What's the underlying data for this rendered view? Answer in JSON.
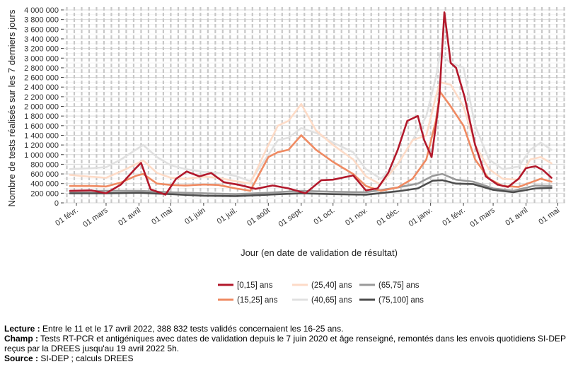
{
  "chart_data": {
    "type": "line",
    "title": "",
    "ylabel": "Nombre de tests réalisés sur les 7 derniers jours",
    "xlabel": "Jour (en date de validation de résultat)",
    "ylim": [
      0,
      4000000
    ],
    "yticks": [
      0,
      200000,
      400000,
      600000,
      800000,
      1000000,
      1200000,
      1400000,
      1600000,
      1800000,
      2000000,
      2200000,
      2400000,
      2600000,
      2800000,
      3000000,
      3200000,
      3400000,
      3600000,
      3800000,
      4000000
    ],
    "ytick_labels": [
      "0",
      "200 000",
      "400 000",
      "600 000",
      "800 000",
      "1 000 000",
      "1 200 000",
      "1 400 000",
      "1 600 000",
      "1 800 000",
      "2 000 000",
      "2 200 000",
      "2 400 000",
      "2 600 000",
      "2 800 000",
      "3 000 000",
      "3 200 000",
      "3 400 000",
      "3 600 000",
      "3 800 000",
      "4 000 000"
    ],
    "xlim": [
      "2021-01-20",
      "2022-05-08"
    ],
    "xticks": [
      "2021-02-01",
      "2021-03-01",
      "2021-04-01",
      "2021-05-01",
      "2021-06-01",
      "2021-07-01",
      "2021-08-01",
      "2021-09-01",
      "2021-10-01",
      "2021-11-01",
      "2021-12-01",
      "2022-01-01",
      "2022-02-01",
      "2022-03-01",
      "2022-04-01",
      "2022-05-01"
    ],
    "xtick_labels": [
      "01 févr.",
      "01 mars",
      "01 avril",
      "01 mai",
      "01 juin",
      "01 juil.",
      "01 août",
      "01 sept.",
      "01 oct.",
      "01 nov.",
      "01 déc.",
      "01 janv.",
      "01 févr.",
      "01 mars",
      "01 avril",
      "01 mai"
    ],
    "grid": true,
    "legend_position": "bottom",
    "series": [
      {
        "name": "[0,15] ans",
        "color": "#b2182b",
        "x": [
          "2021-01-26",
          "2021-02-15",
          "2021-03-01",
          "2021-03-15",
          "2021-03-29",
          "2021-04-03",
          "2021-04-12",
          "2021-04-26",
          "2021-05-06",
          "2021-05-16",
          "2021-05-28",
          "2021-06-08",
          "2021-06-20",
          "2021-07-05",
          "2021-07-20",
          "2021-08-05",
          "2021-08-20",
          "2021-09-05",
          "2021-09-20",
          "2021-10-01",
          "2021-10-20",
          "2021-11-01",
          "2021-11-12",
          "2021-11-22",
          "2021-12-01",
          "2021-12-10",
          "2021-12-20",
          "2021-12-26",
          "2022-01-02",
          "2022-01-09",
          "2022-01-14",
          "2022-01-20",
          "2022-01-25",
          "2022-02-02",
          "2022-02-12",
          "2022-02-22",
          "2022-03-05",
          "2022-03-15",
          "2022-03-25",
          "2022-04-01",
          "2022-04-10",
          "2022-04-17",
          "2022-04-25"
        ],
        "values": [
          250000,
          260000,
          200000,
          380000,
          720000,
          830000,
          280000,
          170000,
          500000,
          650000,
          550000,
          620000,
          430000,
          370000,
          290000,
          360000,
          300000,
          200000,
          470000,
          480000,
          570000,
          260000,
          300000,
          620000,
          1100000,
          1700000,
          1800000,
          1300000,
          950000,
          2100000,
          3950000,
          2900000,
          2800000,
          2200000,
          1200000,
          550000,
          380000,
          330000,
          500000,
          720000,
          760000,
          680000,
          520000
        ]
      },
      {
        "name": "(15,25] ans",
        "color": "#ef8a62",
        "x": [
          "2021-01-26",
          "2021-02-15",
          "2021-03-01",
          "2021-03-15",
          "2021-03-29",
          "2021-04-05",
          "2021-04-18",
          "2021-05-01",
          "2021-05-15",
          "2021-06-01",
          "2021-06-15",
          "2021-07-01",
          "2021-07-15",
          "2021-08-01",
          "2021-08-10",
          "2021-08-20",
          "2021-09-01",
          "2021-09-15",
          "2021-10-01",
          "2021-10-20",
          "2021-11-01",
          "2021-11-15",
          "2021-12-01",
          "2021-12-15",
          "2021-12-28",
          "2022-01-06",
          "2022-01-10",
          "2022-01-20",
          "2022-02-01",
          "2022-02-12",
          "2022-02-25",
          "2022-03-10",
          "2022-03-25",
          "2022-04-05",
          "2022-04-15",
          "2022-04-25"
        ],
        "values": [
          350000,
          350000,
          340000,
          420000,
          560000,
          600000,
          400000,
          370000,
          360000,
          380000,
          370000,
          300000,
          250000,
          950000,
          1050000,
          1100000,
          1400000,
          1100000,
          850000,
          600000,
          350000,
          250000,
          320000,
          500000,
          900000,
          1700000,
          2300000,
          2000000,
          1600000,
          900000,
          500000,
          350000,
          330000,
          420000,
          500000,
          440000
        ]
      },
      {
        "name": "(25,40] ans",
        "color": "#fddbc7",
        "x": [
          "2021-01-26",
          "2021-02-15",
          "2021-03-01",
          "2021-03-15",
          "2021-03-29",
          "2021-04-05",
          "2021-04-18",
          "2021-05-01",
          "2021-05-15",
          "2021-06-01",
          "2021-06-15",
          "2021-07-01",
          "2021-07-15",
          "2021-08-01",
          "2021-08-10",
          "2021-08-20",
          "2021-09-01",
          "2021-09-15",
          "2021-10-01",
          "2021-10-20",
          "2021-11-01",
          "2021-11-15",
          "2021-12-01",
          "2021-12-15",
          "2021-12-28",
          "2022-01-06",
          "2022-01-10",
          "2022-01-20",
          "2022-02-01",
          "2022-02-12",
          "2022-02-25",
          "2022-03-10",
          "2022-03-25",
          "2022-04-05",
          "2022-04-15",
          "2022-04-25"
        ],
        "values": [
          580000,
          540000,
          520000,
          650000,
          800000,
          880000,
          620000,
          520000,
          500000,
          540000,
          520000,
          450000,
          400000,
          1200000,
          1600000,
          1700000,
          2050000,
          1500000,
          1200000,
          900000,
          550000,
          380000,
          800000,
          1300000,
          1400000,
          2200000,
          2500000,
          2450000,
          2000000,
          1200000,
          700000,
          500000,
          480000,
          900000,
          950000,
          820000
        ]
      },
      {
        "name": "(40,65] ans",
        "color": "#e0e0e0",
        "x": [
          "2021-01-26",
          "2021-02-15",
          "2021-03-01",
          "2021-03-15",
          "2021-03-29",
          "2021-04-05",
          "2021-04-18",
          "2021-05-01",
          "2021-05-15",
          "2021-06-01",
          "2021-06-15",
          "2021-07-01",
          "2021-07-15",
          "2021-08-01",
          "2021-08-10",
          "2021-08-20",
          "2021-09-01",
          "2021-09-15",
          "2021-10-01",
          "2021-10-20",
          "2021-11-01",
          "2021-11-15",
          "2021-12-01",
          "2021-12-15",
          "2021-12-28",
          "2022-01-06",
          "2022-01-10",
          "2022-01-20",
          "2022-02-01",
          "2022-02-12",
          "2022-02-25",
          "2022-03-10",
          "2022-03-25",
          "2022-04-05",
          "2022-04-15",
          "2022-04-25"
        ],
        "values": [
          700000,
          720000,
          740000,
          900000,
          1100000,
          1200000,
          950000,
          780000,
          700000,
          640000,
          620000,
          560000,
          450000,
          1000000,
          1300000,
          1350000,
          1550000,
          1450000,
          1250000,
          1050000,
          700000,
          500000,
          800000,
          1300000,
          1800000,
          2600000,
          3100000,
          2900000,
          2800000,
          1600000,
          900000,
          700000,
          750000,
          1100000,
          1250000,
          1100000
        ]
      },
      {
        "name": "(65,75] ans",
        "color": "#999999",
        "x": [
          "2021-01-26",
          "2021-03-01",
          "2021-04-01",
          "2021-05-01",
          "2021-06-01",
          "2021-07-01",
          "2021-08-01",
          "2021-09-01",
          "2021-10-01",
          "2021-11-01",
          "2021-12-01",
          "2021-12-20",
          "2022-01-03",
          "2022-01-12",
          "2022-01-25",
          "2022-02-10",
          "2022-03-01",
          "2022-03-20",
          "2022-04-10",
          "2022-04-25"
        ],
        "values": [
          240000,
          250000,
          250000,
          220000,
          200000,
          180000,
          210000,
          250000,
          230000,
          220000,
          320000,
          400000,
          560000,
          600000,
          480000,
          440000,
          300000,
          250000,
          360000,
          350000
        ]
      },
      {
        "name": "(75,100] ans",
        "color": "#4d4d4d",
        "x": [
          "2021-01-26",
          "2021-03-01",
          "2021-04-01",
          "2021-05-01",
          "2021-06-01",
          "2021-07-01",
          "2021-08-01",
          "2021-09-01",
          "2021-10-01",
          "2021-11-01",
          "2021-12-01",
          "2021-12-20",
          "2022-01-03",
          "2022-01-12",
          "2022-01-25",
          "2022-02-10",
          "2022-03-01",
          "2022-03-20",
          "2022-04-10",
          "2022-04-25"
        ],
        "values": [
          200000,
          200000,
          210000,
          180000,
          150000,
          140000,
          170000,
          200000,
          180000,
          170000,
          240000,
          300000,
          460000,
          470000,
          400000,
          390000,
          270000,
          220000,
          300000,
          310000
        ]
      }
    ]
  },
  "notes": {
    "lecture_label": "Lecture :",
    "lecture_text": " Entre le 11 et le 17 avril 2022, 388 832 tests validés concernaient les 16-25 ans.",
    "champ_label": "Champ :",
    "champ_text": " Tests RT-PCR et antigéniques avec dates de validation depuis le 7 juin 2020 et âge renseigné, remontés dans les envois quotidiens SI-DEP reçus par la DREES jusqu'au 19 avril 2022 5h.",
    "source_label": "Source :",
    "source_text": " SI-DEP ; calculs DREES"
  }
}
